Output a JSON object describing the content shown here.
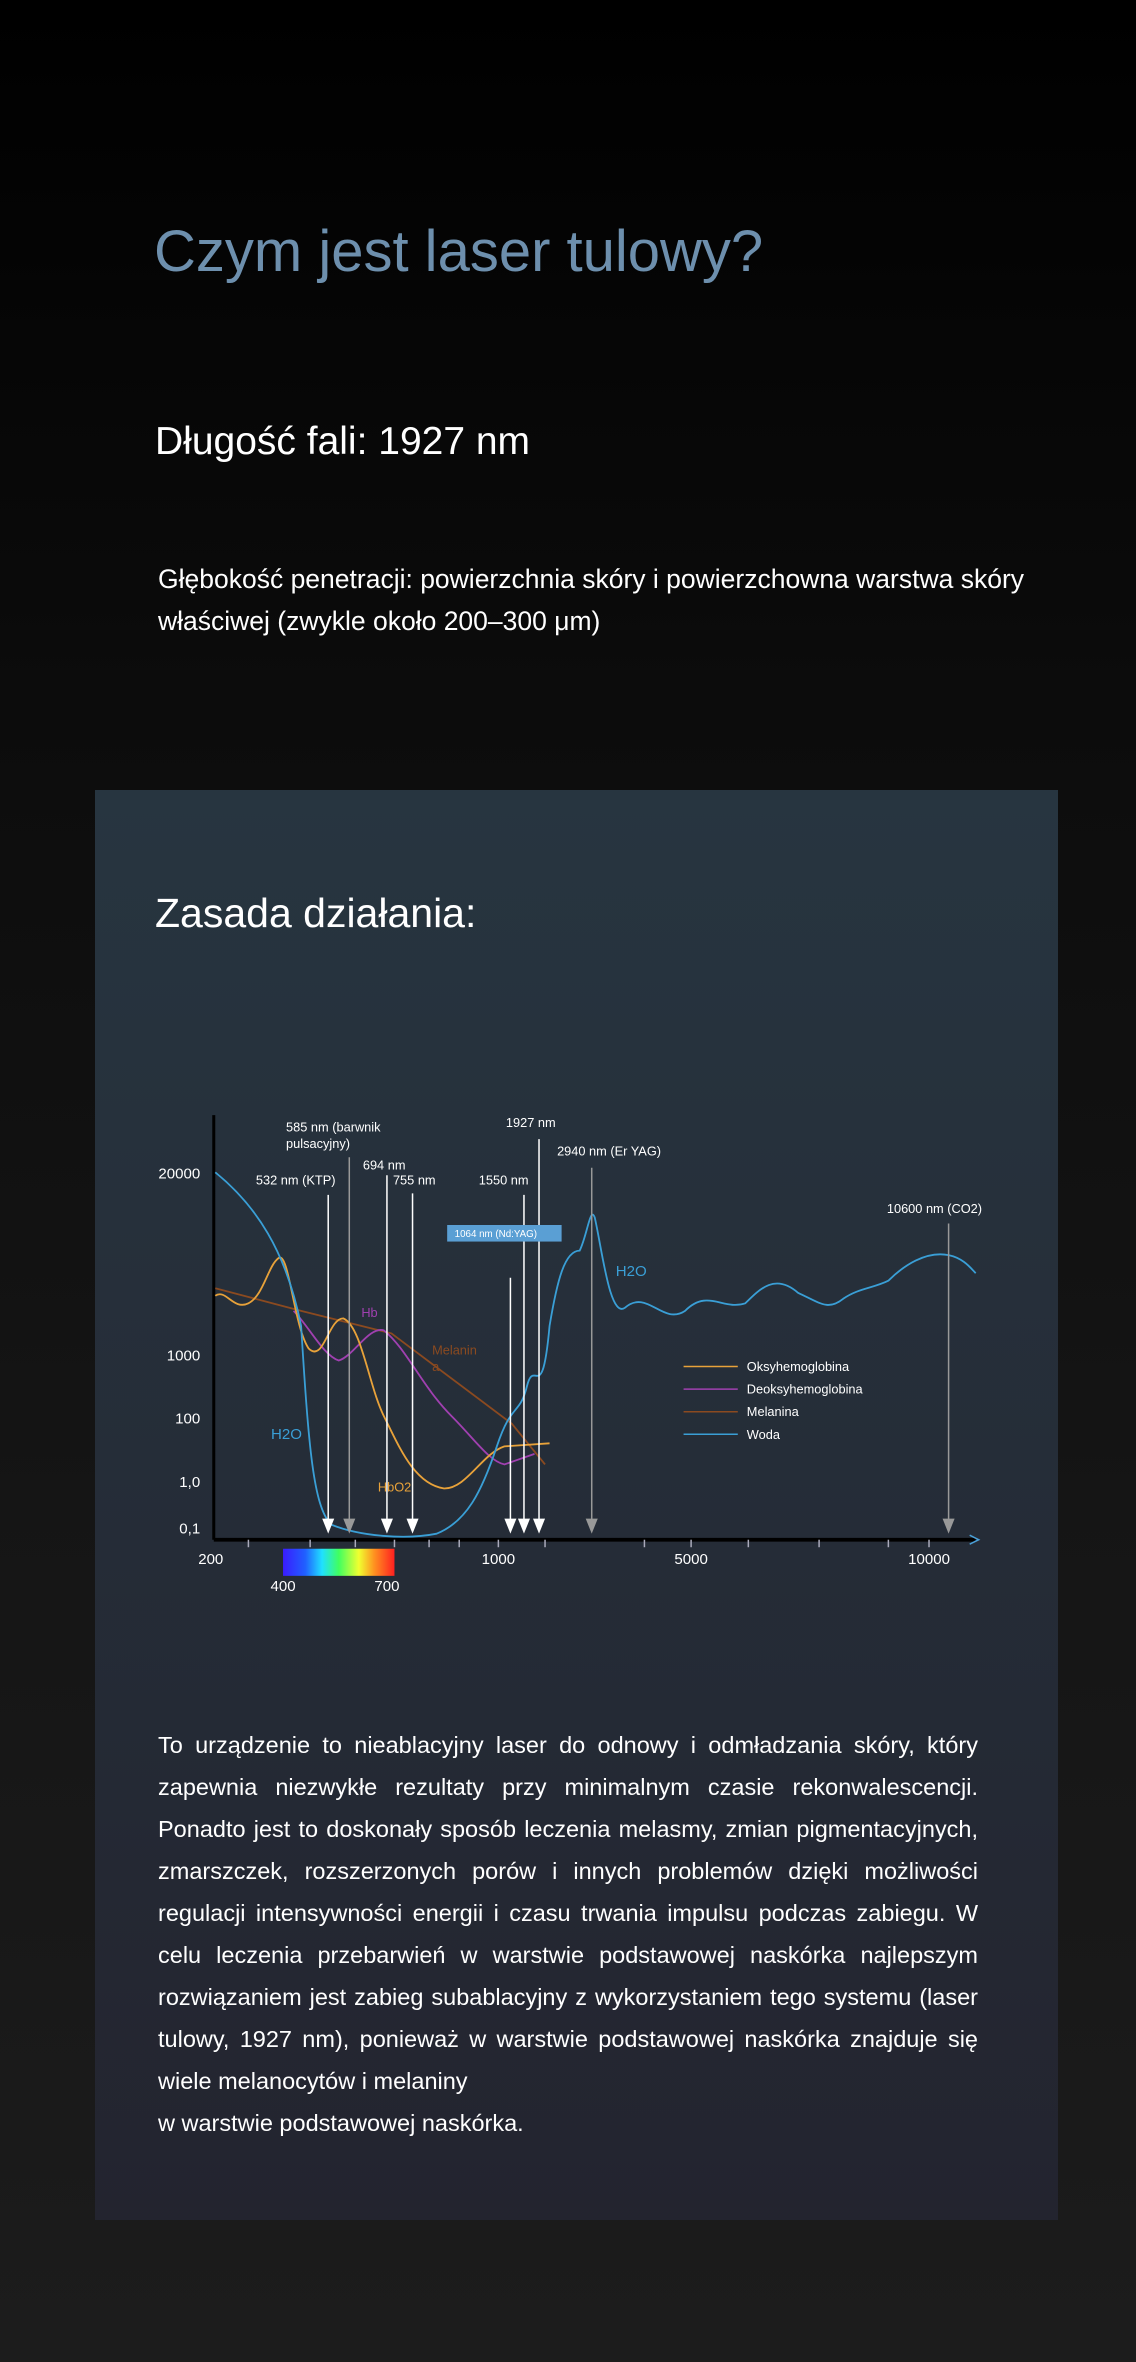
{
  "header": {
    "title": "Czym jest laser tulowy?",
    "wavelength": "Długość fali: 1927 nm",
    "depth": "Głębokość penetracji: powierzchnia skóry i powierzchowna warstwa skóry właściwej (zwykle około 200–300 μm)"
  },
  "section": {
    "title": "Zasada działania:",
    "figure": {
      "wavelengths": [
        {
          "lines": [
            "585 nm (barwnik",
            "pulsacyjny)"
          ]
        },
        {
          "lines": [
            "532 nm (KTP)"
          ]
        },
        {
          "lines": [
            "694 nm"
          ]
        },
        {
          "lines": [
            "755 nm"
          ]
        },
        {
          "lines": [
            "1550 nm"
          ]
        },
        {
          "lines": [
            "1927 nm"
          ]
        },
        {
          "lines": [
            "2940 nm (Er YAG)"
          ]
        },
        {
          "lines": [
            "10600 nm (CO2)"
          ]
        },
        {
          "lines": [
            "1064 nm (Nd:YAG)"
          ]
        }
      ],
      "y_labels": [
        "20000",
        "1000",
        "100",
        "1,0",
        "0,1"
      ],
      "x_labels": [
        "200",
        "1000",
        "5000",
        "10000"
      ],
      "spectrum_labels": [
        "400",
        "700"
      ],
      "curve_labels": [
        "H2O",
        "H2O",
        "Hb",
        "Melanin",
        "a",
        "HbO2"
      ],
      "legend": [
        "Oksyhemoglobina",
        "Deoksyhemoglobina",
        "Melanina",
        "Woda"
      ]
    },
    "body": [
      "To urządzenie to nieablacyjny laser do odnowy i odmładzania skóry, który zapewnia niezwykłe rezultaty przy minimalnym czasie rekonwalescencji. Ponadto jest to doskonały sposób leczenia melasmy, zmian pigmentacyjnych, zmarszczek, rozszerzonych porów i innych problemów dzięki możliwości regulacji intensywności energii i czasu trwania impulsu podczas zabiegu. W celu leczenia przebarwień w warstwie podstawowej naskórka najlepszym rozwiązaniem jest zabieg subablacyjny z wykorzystaniem tego systemu (laser tulowy, 1927 nm), ponieważ w warstwie podstawowej naskórka znajduje się wiele melanocytów i melaniny",
      "w warstwie podstawowej naskórka."
    ]
  }
}
